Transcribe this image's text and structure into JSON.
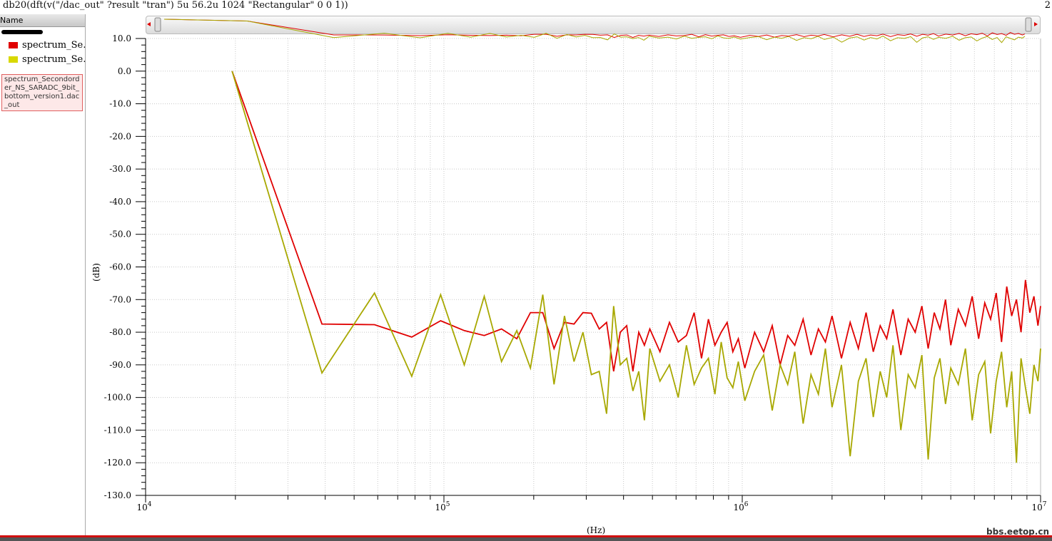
{
  "expression": "db20(dft(v(\"/dac_out\" ?result \"tran\")  5u 56.2u 1024 \"Rectangular\"  0 0 1))",
  "corner_text": "2",
  "left_panel": {
    "header": "Name",
    "items": [
      {
        "label": "spectrum_Se…out",
        "color": "#e00000"
      },
      {
        "label": "spectrum_Se…S",
        "color": "#d8d800"
      }
    ]
  },
  "tooltip": "spectrum_Secondorder_NS_SARADC_9bit_bottom_version1.dac_out",
  "watermark": "bbs.eetop.cn",
  "colors": {
    "red": "#e00000",
    "yellow": "#a8a800",
    "grid": "#c8c8c8"
  },
  "chart_data": {
    "type": "line",
    "xlabel": "(Hz)",
    "ylabel": "(dB)",
    "xscale": "log",
    "xlim": [
      10000,
      10000000
    ],
    "ylim": [
      -130,
      10
    ],
    "grid": true,
    "ytick_labels": [
      "10.0",
      "0.0",
      "-10.0",
      "-20.0",
      "-30.0",
      "-40.0",
      "-50.0",
      "-60.0",
      "-70.0",
      "-80.0",
      "-90.0",
      "-100.0",
      "-110.0",
      "-120.0",
      "-130.0"
    ],
    "xtick_labels": [
      {
        "base": "10",
        "exp": "4"
      },
      {
        "base": "10",
        "exp": "5"
      },
      {
        "base": "10",
        "exp": "6"
      },
      {
        "base": "10",
        "exp": "7"
      }
    ],
    "x": [
      19500,
      39000,
      58500,
      78000,
      97500,
      117000,
      136500,
      156000,
      175500,
      195000,
      214500,
      234000,
      253500,
      273000,
      292500,
      312000,
      331500,
      351000,
      370500,
      390000,
      410000,
      430000,
      450000,
      470000,
      490000,
      530000,
      570000,
      610000,
      650000,
      690000,
      730000,
      770000,
      810000,
      850000,
      890000,
      930000,
      970000,
      1020000,
      1100000,
      1180000,
      1260000,
      1340000,
      1420000,
      1500000,
      1600000,
      1700000,
      1800000,
      1900000,
      2000000,
      2150000,
      2300000,
      2450000,
      2600000,
      2750000,
      2900000,
      3050000,
      3200000,
      3400000,
      3600000,
      3800000,
      4000000,
      4200000,
      4400000,
      4600000,
      4800000,
      5000000,
      5300000,
      5600000,
      5900000,
      6200000,
      6500000,
      6800000,
      7100000,
      7400000,
      7700000,
      8000000,
      8300000,
      8600000,
      8900000,
      9200000,
      9500000,
      9800000,
      10000000
    ],
    "series": [
      {
        "color": "#e00000",
        "values": [
          0,
          -77.5,
          -77.7,
          -81.5,
          -76.5,
          -79.5,
          -81,
          -79,
          -82,
          -74,
          -74,
          -85,
          -77,
          -77.5,
          -74,
          -74.2,
          -79,
          -77,
          -92,
          -80,
          -78,
          -92,
          -80,
          -84,
          -79,
          -86,
          -77,
          -83,
          -81,
          -74,
          -88,
          -76,
          -84,
          -80,
          -77,
          -86,
          -82,
          -91,
          -80,
          -86,
          -78,
          -90,
          -81,
          -84,
          -76,
          -87,
          -79,
          -83,
          -75,
          -88,
          -77,
          -85,
          -74,
          -86,
          -78,
          -82,
          -73,
          -87,
          -76,
          -80,
          -72,
          -85,
          -74,
          -79,
          -70,
          -84,
          -73,
          -78,
          -69,
          -82,
          -71,
          -76,
          -68,
          -83,
          -66,
          -75,
          -70,
          -80,
          -64,
          -74,
          -69,
          -78,
          -72
        ]
      },
      {
        "color": "#a8a800",
        "values": [
          0,
          -92.5,
          -68,
          -93.5,
          -68.5,
          -90,
          -69,
          -89,
          -79.5,
          -91,
          -68.5,
          -96,
          -75,
          -89,
          -80,
          -93,
          -92,
          -105,
          -72,
          -90,
          -88,
          -98,
          -92,
          -107,
          -85,
          -95,
          -90,
          -100,
          -84,
          -96,
          -91,
          -88,
          -99,
          -83,
          -94,
          -97,
          -89,
          -101,
          -92,
          -87,
          -104,
          -90,
          -96,
          -86,
          -108,
          -93,
          -99,
          -85,
          -103,
          -90,
          -118,
          -95,
          -88,
          -106,
          -92,
          -100,
          -84,
          -110,
          -93,
          -97,
          -87,
          -119,
          -94,
          -88,
          -102,
          -91,
          -96,
          -85,
          -107,
          -93,
          -89,
          -111,
          -95,
          -86,
          -103,
          -92,
          -120,
          -88,
          -97,
          -105,
          -90,
          -95,
          -85
        ]
      }
    ]
  }
}
